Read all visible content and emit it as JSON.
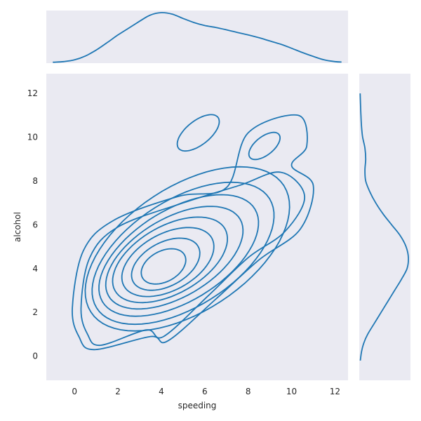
{
  "chart_data": {
    "type": "kde-joint",
    "xlabel": "speeding",
    "ylabel": "alcohol",
    "xlim": [
      -1.3,
      12.6
    ],
    "ylim": [
      -1.1,
      12.9
    ],
    "x_ticks": [
      0,
      2,
      4,
      6,
      8,
      10,
      12
    ],
    "y_ticks": [
      0,
      2,
      4,
      6,
      8,
      10,
      12
    ],
    "grid": false,
    "colors": {
      "line": "#1f77b4",
      "panel_bg": "#eaeaf2",
      "text": "#262626"
    },
    "marginal_x_density": {
      "x": [
        -1.0,
        -0.5,
        0.0,
        0.5,
        1.0,
        1.5,
        2.0,
        2.5,
        3.0,
        3.5,
        4.0,
        4.5,
        5.0,
        5.5,
        6.0,
        6.5,
        7.0,
        7.5,
        8.0,
        8.5,
        9.0,
        9.5,
        10.0,
        10.5,
        11.0,
        11.5,
        12.0,
        12.3
      ],
      "density": [
        0.001,
        0.004,
        0.012,
        0.03,
        0.058,
        0.092,
        0.128,
        0.16,
        0.192,
        0.221,
        0.232,
        0.225,
        0.205,
        0.186,
        0.172,
        0.163,
        0.152,
        0.14,
        0.128,
        0.115,
        0.1,
        0.085,
        0.066,
        0.046,
        0.028,
        0.012,
        0.004,
        0.002
      ]
    },
    "marginal_y_density": {
      "y": [
        -0.2,
        0.2,
        0.6,
        1.0,
        1.5,
        2.0,
        2.5,
        3.0,
        3.5,
        4.0,
        4.5,
        5.0,
        5.5,
        6.0,
        6.5,
        7.0,
        7.5,
        8.0,
        8.5,
        9.0,
        9.5,
        10.0,
        10.5,
        11.0,
        11.5,
        12.0
      ],
      "density": [
        0.002,
        0.008,
        0.02,
        0.04,
        0.075,
        0.11,
        0.145,
        0.18,
        0.215,
        0.245,
        0.252,
        0.24,
        0.21,
        0.165,
        0.12,
        0.082,
        0.052,
        0.03,
        0.026,
        0.03,
        0.026,
        0.014,
        0.008,
        0.005,
        0.003,
        0.001
      ]
    },
    "contour_levels": [
      {
        "cx": 4.1,
        "cy": 4.1,
        "rx": 1.1,
        "ry": 0.7,
        "angle": 28
      },
      {
        "cx": 4.2,
        "cy": 4.2,
        "rx": 1.7,
        "ry": 1.0,
        "angle": 28
      },
      {
        "cx": 4.3,
        "cy": 4.3,
        "rx": 2.3,
        "ry": 1.3,
        "angle": 28
      },
      {
        "cx": 4.4,
        "cy": 4.4,
        "rx": 2.9,
        "ry": 1.55,
        "angle": 29
      },
      {
        "cx": 4.6,
        "cy": 4.5,
        "rx": 3.5,
        "ry": 1.8,
        "angle": 30
      },
      {
        "cx": 4.8,
        "cy": 4.6,
        "rx": 4.1,
        "ry": 2.1,
        "angle": 31
      },
      {
        "cx": 5.0,
        "cy": 4.7,
        "rx": 4.7,
        "ry": 2.45,
        "angle": 32
      },
      {
        "cx": 5.2,
        "cy": 4.9,
        "rx": 5.3,
        "ry": 2.85,
        "angle": 33
      }
    ],
    "contour_outer_1": [
      [
        1.2,
        0.5
      ],
      [
        3.3,
        1.2
      ],
      [
        4.1,
        0.9
      ],
      [
        6.2,
        2.8
      ],
      [
        8.0,
        4.5
      ],
      [
        9.7,
        5.7
      ],
      [
        10.6,
        7.3
      ],
      [
        9.5,
        8.4
      ],
      [
        7.6,
        7.8
      ],
      [
        5.0,
        7.0
      ],
      [
        2.0,
        5.9
      ],
      [
        0.7,
        4.5
      ],
      [
        0.3,
        2.2
      ],
      [
        0.6,
        1.0
      ]
    ],
    "contour_outer_2": [
      [
        0.9,
        0.3
      ],
      [
        3.5,
        0.9
      ],
      [
        4.3,
        0.7
      ],
      [
        6.5,
        2.6
      ],
      [
        8.5,
        4.4
      ],
      [
        10.4,
        5.8
      ],
      [
        11.0,
        7.8
      ],
      [
        10.0,
        8.7
      ],
      [
        10.7,
        9.6
      ],
      [
        10.3,
        11.0
      ],
      [
        8.0,
        10.2
      ],
      [
        7.0,
        7.7
      ],
      [
        4.8,
        7.3
      ],
      [
        1.8,
        6.2
      ],
      [
        0.4,
        4.8
      ],
      [
        -0.1,
        2.2
      ],
      [
        0.2,
        0.9
      ]
    ],
    "contour_islands": [
      {
        "cx": 5.7,
        "cy": 10.2,
        "rx": 1.15,
        "ry": 0.55,
        "angle": 38
      },
      {
        "cx": 8.75,
        "cy": 9.6,
        "rx": 0.85,
        "ry": 0.42,
        "angle": 38
      }
    ]
  }
}
